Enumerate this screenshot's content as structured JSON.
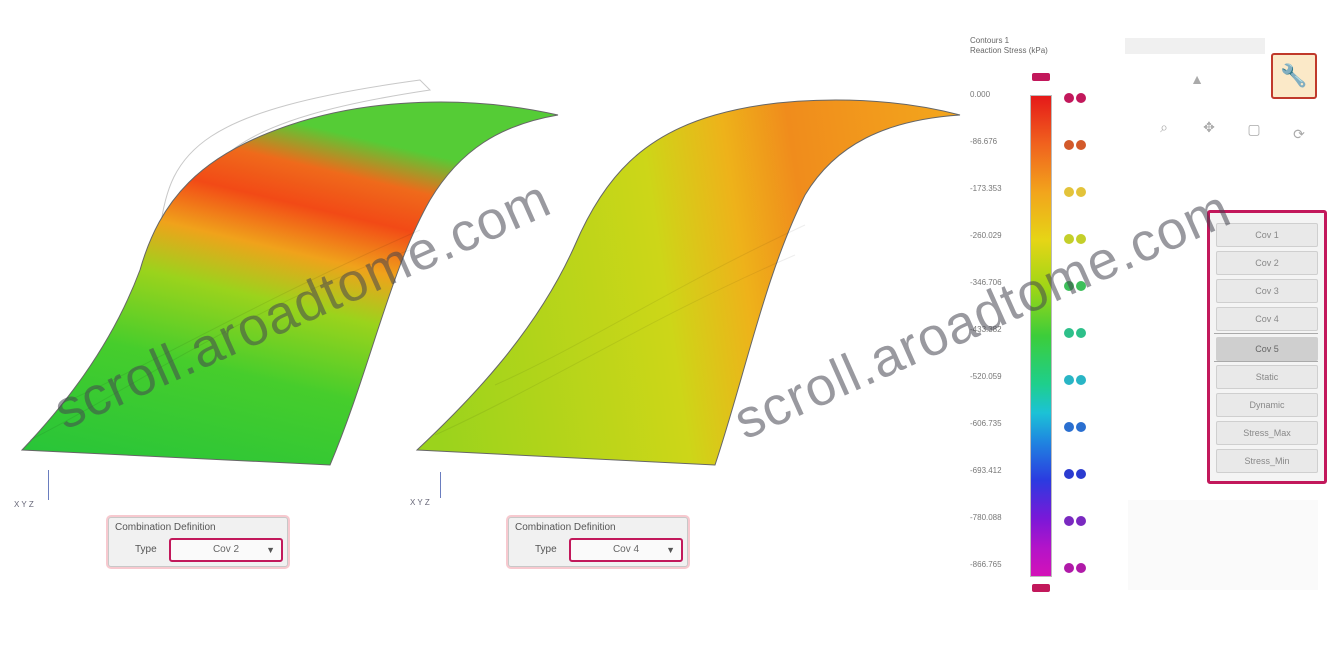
{
  "views": [
    {
      "id": "left",
      "panel_title": "Combination Definition",
      "type_label": "Type",
      "selected_combo": "Cov 2",
      "triad_label": "X  Y  Z"
    },
    {
      "id": "right",
      "panel_title": "Combination Definition",
      "type_label": "Type",
      "selected_combo": "Cov 4",
      "triad_label": "X  Y  Z"
    }
  ],
  "legend": {
    "title_line1": "Contours 1",
    "title_line2": "Reaction Stress (kPa)",
    "ticks": [
      "0.000",
      "-86.676",
      "-173.353",
      "-260.029",
      "-346.706",
      "-433.382",
      "-520.059",
      "-606.735",
      "-693.412",
      "-780.088",
      "-866.765"
    ]
  },
  "toolbar": {
    "app_icon": "materials-app-icon",
    "menu_items": [
      "Cov 1",
      "Cov 2",
      "Cov 3",
      "Cov 4",
      "Cov 5",
      "Static",
      "Dynamic",
      "Stress_Max",
      "Stress_Min"
    ],
    "active_index": 4
  },
  "watermark": {
    "text": "scroll.aroadtome.com"
  },
  "colors": {
    "accent": "#c2185b",
    "contour_max": "#e51919",
    "contour_min": "#d411b8"
  }
}
